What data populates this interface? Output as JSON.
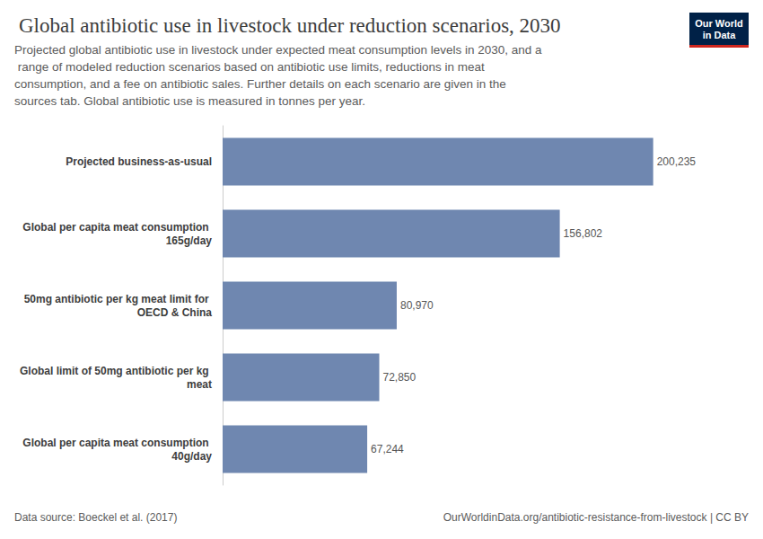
{
  "chart_data": {
    "type": "bar",
    "orientation": "horizontal",
    "title": "Global antibiotic use in livestock under reduction scenarios, 2030",
    "subtitle": "Projected global antibiotic use in livestock under expected meat consumption levels in 2030, and a range of modeled reduction scenarios based on antibiotic use limits, reductions in meat consumption, and a fee on antibiotic sales. Further details on each scenario are given in the sources tab. Global antibiotic use is measured in tonnes per year.",
    "categories": [
      "Projected business-as-usual",
      "Global per capita meat consumption 165g/day",
      "50mg antibiotic per kg meat limit for OECD & China",
      "Global limit of 50mg antibiotic per kg meat",
      "Global per capita meat consumption 40g/day"
    ],
    "values": [
      200235,
      156802,
      80970,
      72850,
      67244
    ],
    "value_labels": [
      "200,235",
      "156,802",
      "80,970",
      "72,850",
      "67,244"
    ],
    "color": "#6f87b0",
    "xlim": [
      0,
      220000
    ],
    "data_labels": true,
    "tick_labels": "y",
    "grid": false,
    "source": "Data source: Boeckel et al. (2017)",
    "footer": "OurWorldinData.org/antibiotic-resistance-from-livestock | CC BY",
    "logo": [
      "Our World",
      "in Data"
    ]
  }
}
